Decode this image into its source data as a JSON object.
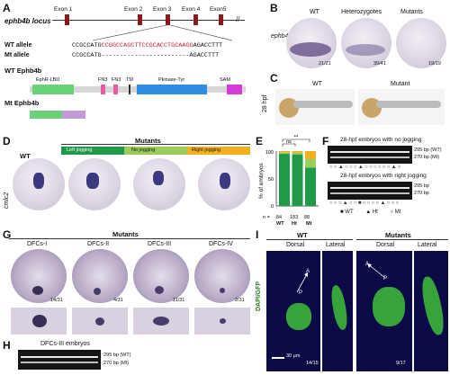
{
  "panelA": {
    "label": "A",
    "locus": "ephb4b locus",
    "exons": [
      "Exon 1",
      "Exon 2",
      "Exon 3",
      "Exon 4",
      "Exon5"
    ],
    "wt_allele_label": "WT allele",
    "mt_allele_label": "Mt allele",
    "wt_seq_black1": "CCGCCATG",
    "wt_seq_red": "CCGGCCAGCTTCCGCACCTGCAAGG",
    "wt_seq_black2": "AGACCTTT",
    "mt_seq_black1": "CCGCCATG",
    "mt_seq_dashes": "------------------------",
    "mt_seq_black2": "AGACCTTT",
    "wt_protein": "WT Ephb4b",
    "domains": [
      "EphR-LBD",
      "FN3",
      "FN3",
      "TM",
      "Pkinase-Tyr",
      "SAM"
    ],
    "mt_protein": "Mt Ephb4b"
  },
  "panelB": {
    "label": "B",
    "gene": "ephb4b",
    "headers": [
      "WT",
      "Heterozygotes",
      "Mutants"
    ],
    "counts": [
      "21/21",
      "39/41",
      "19/19"
    ]
  },
  "panelC": {
    "label": "C",
    "stage": "28 hpf",
    "headers": [
      "WT",
      "Mutant"
    ]
  },
  "panelD": {
    "label": "D",
    "gene": "cmlc2",
    "wt": "WT",
    "mutants": "Mutants",
    "legend": [
      "Left jogging",
      "No jogging",
      "Right jogging"
    ]
  },
  "panelE": {
    "label": "E",
    "ylabel": "% of embryos",
    "sig_ns": "ns",
    "sig_star": "**",
    "n_label": "n =",
    "n_values": [
      "84",
      "183",
      "88"
    ],
    "groups": [
      "WT",
      "Ht",
      "Mt"
    ]
  },
  "chart_data": {
    "type": "bar",
    "categories": [
      "WT",
      "Ht",
      "Mt"
    ],
    "series": [
      {
        "name": "Left jogging",
        "values": [
          95,
          94,
          70
        ],
        "color": "#1f9a47"
      },
      {
        "name": "No jogging",
        "values": [
          3,
          3,
          16
        ],
        "color": "#9ccd5a"
      },
      {
        "name": "Right jogging",
        "values": [
          2,
          3,
          14
        ],
        "color": "#f2b01f"
      }
    ],
    "ylabel": "% of embryos",
    "yticks": [
      "0",
      "50",
      "100"
    ],
    "ylim": [
      0,
      100
    ]
  },
  "panelF": {
    "label": "F",
    "title1": "28-hpf embryos with no jogging",
    "title2": "28-hpf embryos with right jogging",
    "bp_wt": "295 bp (WT)",
    "bp_mt": "270 bp (Mt)",
    "bp1": "295 bp",
    "bp2": "270 bp",
    "legend_wt": "WT",
    "legend_ht": "Ht",
    "legend_mt": "Mt"
  },
  "panelG": {
    "label": "G",
    "mutants": "Mutants",
    "headers": [
      "DFCs-I",
      "DFCs-II",
      "DFCs-III",
      "DFCs-IV"
    ],
    "counts": [
      "14/31",
      "4/31",
      "11/31",
      "2/31"
    ]
  },
  "panelH": {
    "label": "H",
    "title": "DFCs-III embryos",
    "bp_wt": "295 bp (WT)",
    "bp_mt": "270 bp (Mt)"
  },
  "panelI": {
    "label": "I",
    "wt": "WT",
    "mutants": "Mutants",
    "dorsal": "Dorsal",
    "lateral": "Lateral",
    "stain": "DAPI/GFP",
    "scale": "30 μm",
    "count_wt": "14/15",
    "count_mt": "9/17",
    "a": "A",
    "p": "P"
  }
}
